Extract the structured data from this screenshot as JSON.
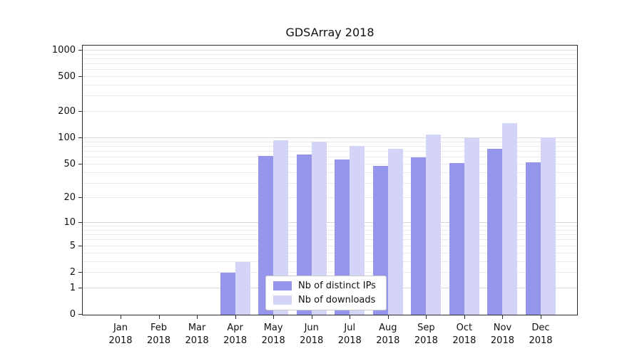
{
  "chart_data": {
    "type": "bar",
    "title": "GDSArray 2018",
    "xlabel": "",
    "ylabel": "",
    "categories": [
      "Jan 2018",
      "Feb 2018",
      "Mar 2018",
      "Apr 2018",
      "May 2018",
      "Jun 2018",
      "Jul 2018",
      "Aug 2018",
      "Sep 2018",
      "Oct 2018",
      "Nov 2018",
      "Dec 2018"
    ],
    "series": [
      {
        "name": "Nb of distinct IPs",
        "color": "#9595ec",
        "values": [
          0,
          0,
          0,
          2,
          62,
          65,
          57,
          48,
          60,
          52,
          75,
          53
        ]
      },
      {
        "name": "Nb of downloads",
        "color": "#d4d4f8",
        "values": [
          0,
          0,
          0,
          3,
          95,
          92,
          82,
          76,
          110,
          100,
          150,
          103
        ]
      }
    ],
    "y_ticks": [
      0,
      1,
      2,
      5,
      10,
      20,
      50,
      100,
      200,
      500,
      1000
    ],
    "y_scale": "log1p",
    "ylim": [
      0,
      1180
    ],
    "grid": true,
    "legend_position": "inside lower center",
    "colors": {
      "grid_major": "#d9d9d9",
      "grid_minor": "#eaeaea",
      "axis": "#2b2b2b",
      "background": "#ffffff"
    }
  }
}
